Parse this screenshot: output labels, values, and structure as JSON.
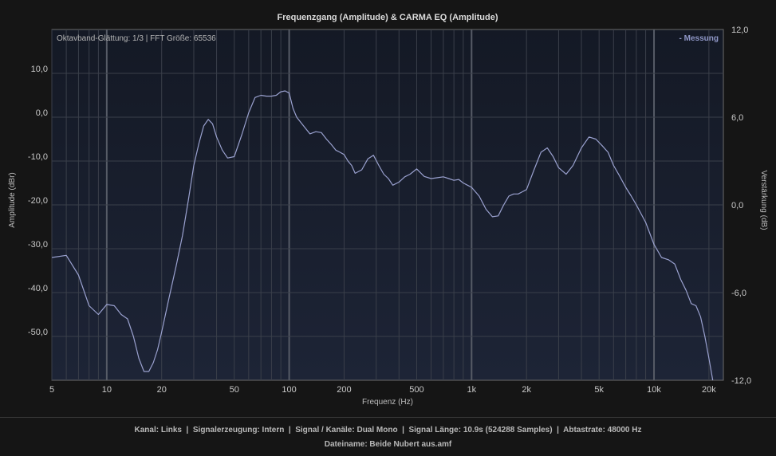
{
  "chart_data": {
    "type": "line",
    "title": "Frequenzgang (Amplitude) & CARMA EQ (Amplitude)",
    "xlabel": "Frequenz (Hz)",
    "ylabel": "Amplitude (dBr)",
    "y2label": "Verstärkung (dB)",
    "x_scale": "log",
    "xlim": [
      5,
      24000
    ],
    "ylim": [
      -60,
      20
    ],
    "y2lim": [
      -12,
      12
    ],
    "grid": true,
    "legend_position": "top-right",
    "x_ticks": [
      {
        "value": 5,
        "label": "5"
      },
      {
        "value": 10,
        "label": "10"
      },
      {
        "value": 20,
        "label": "20"
      },
      {
        "value": 50,
        "label": "50"
      },
      {
        "value": 100,
        "label": "100"
      },
      {
        "value": 200,
        "label": "200"
      },
      {
        "value": 500,
        "label": "500"
      },
      {
        "value": 1000,
        "label": "1k"
      },
      {
        "value": 2000,
        "label": "2k"
      },
      {
        "value": 5000,
        "label": "5k"
      },
      {
        "value": 10000,
        "label": "10k"
      },
      {
        "value": 20000,
        "label": "20k"
      }
    ],
    "y_ticks": [
      {
        "value": 10,
        "label": "10,0"
      },
      {
        "value": 0,
        "label": "0,0"
      },
      {
        "value": -10,
        "label": "-10,0"
      },
      {
        "value": -20,
        "label": "-20,0"
      },
      {
        "value": -30,
        "label": "-30,0"
      },
      {
        "value": -40,
        "label": "-40,0"
      },
      {
        "value": -50,
        "label": "-50,0"
      }
    ],
    "y2_ticks": [
      {
        "value": 12,
        "label": "12,0"
      },
      {
        "value": 6,
        "label": "6,0"
      },
      {
        "value": 0,
        "label": "0,0"
      },
      {
        "value": -6,
        "label": "-6,0"
      },
      {
        "value": -12,
        "label": "-12,0"
      }
    ],
    "info_text": "Oktavband-Glättung: 1/3 | FFT Größe: 65536",
    "series": [
      {
        "name": "- Messung",
        "color": "#9aa1cf",
        "x": [
          5,
          6,
          7,
          8,
          9,
          10,
          11,
          12,
          13,
          14,
          15,
          16,
          17,
          18,
          19,
          20,
          22,
          24,
          26,
          28,
          30,
          32,
          34,
          36,
          38,
          40,
          43,
          46,
          50,
          55,
          60,
          65,
          70,
          75,
          80,
          85,
          90,
          95,
          100,
          105,
          110,
          120,
          130,
          140,
          150,
          160,
          170,
          180,
          190,
          200,
          210,
          220,
          230,
          250,
          270,
          290,
          310,
          330,
          350,
          370,
          400,
          430,
          460,
          500,
          550,
          600,
          650,
          700,
          750,
          800,
          850,
          900,
          950,
          1000,
          1100,
          1200,
          1300,
          1400,
          1500,
          1600,
          1700,
          1800,
          1900,
          2000,
          2200,
          2400,
          2600,
          2800,
          3000,
          3300,
          3600,
          4000,
          4400,
          4800,
          5200,
          5600,
          6000,
          6500,
          7000,
          7500,
          8000,
          9000,
          10000,
          11000,
          12000,
          13000,
          14000,
          15000,
          16000,
          17000,
          18000,
          19000,
          20000,
          21000
        ],
        "y": [
          -32,
          -31.5,
          -36,
          -43,
          -45,
          -42.7,
          -43,
          -45,
          -46,
          -50,
          -55,
          -58,
          -58,
          -56,
          -53,
          -49,
          -41,
          -34,
          -27,
          -19,
          -11,
          -6,
          -2,
          -0.5,
          -1.5,
          -4.5,
          -7.5,
          -9.3,
          -9,
          -4,
          1,
          4.5,
          5,
          4.8,
          4.8,
          5,
          5.8,
          6,
          5.5,
          2,
          0,
          -2,
          -3.8,
          -3.3,
          -3.5,
          -5,
          -6.2,
          -7.5,
          -8,
          -8.5,
          -10,
          -11,
          -12.8,
          -12,
          -9.5,
          -8.7,
          -11,
          -13,
          -14,
          -15.5,
          -14.8,
          -13.6,
          -13,
          -11.8,
          -13.5,
          -14,
          -13.8,
          -13.6,
          -14,
          -14.4,
          -14.2,
          -15,
          -15.5,
          -16,
          -18,
          -21,
          -22.7,
          -22.5,
          -20,
          -18,
          -17.5,
          -17.5,
          -17,
          -16.5,
          -12,
          -8,
          -7,
          -9,
          -11.5,
          -13,
          -11,
          -7,
          -4.5,
          -5,
          -6.5,
          -8,
          -11,
          -13.5,
          -16,
          -18,
          -20,
          -24,
          -29,
          -32,
          -32.5,
          -33.5,
          -37,
          -39.5,
          -42.5,
          -43,
          -45.5,
          -50,
          -55,
          -60
        ]
      }
    ]
  },
  "footer": {
    "line1": "Kanal: Links  |  Signalerzeugung: Intern  |  Signal / Kanäle: Dual Mono  |  Signal Länge: 10.9s (524288 Samples)  |  Abtastrate: 48000 Hz",
    "line2": "Dateiname: Beide Nubert aus.amf"
  },
  "colors": {
    "background": "#151515",
    "plot_background": "#1b2132",
    "grid": "#3a3f4a",
    "grid_major": "#565b66",
    "line": "#9aa1cf"
  }
}
